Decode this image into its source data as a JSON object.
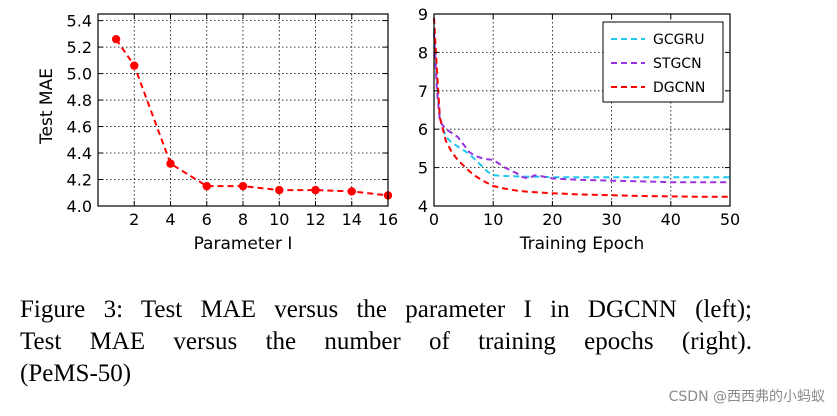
{
  "chart_data": [
    {
      "type": "line",
      "title": "",
      "xlabel": "Parameter I",
      "ylabel": "Test MAE",
      "xlim": [
        0,
        16
      ],
      "ylim": [
        4.0,
        5.45
      ],
      "xticks": [
        2,
        4,
        6,
        8,
        10,
        12,
        14,
        16
      ],
      "yticks": [
        4.0,
        4.2,
        4.4,
        4.6,
        4.8,
        5.0,
        5.2,
        5.4
      ],
      "ytick_labels": [
        "4.0",
        "4.2",
        "4.4",
        "4.6",
        "4.8",
        "5.0",
        "5.2",
        "5.4"
      ],
      "grid": true,
      "series": [
        {
          "name": "DGCNN",
          "color": "#ff0000",
          "style": "dashed-markers",
          "x": [
            1,
            2,
            4,
            6,
            8,
            10,
            12,
            14,
            16
          ],
          "y": [
            5.26,
            5.06,
            4.32,
            4.15,
            4.15,
            4.12,
            4.12,
            4.11,
            4.08
          ]
        }
      ]
    },
    {
      "type": "line",
      "title": "",
      "xlabel": "Training Epoch",
      "ylabel": "",
      "xlim": [
        0,
        50
      ],
      "ylim": [
        4,
        9
      ],
      "xticks": [
        0,
        10,
        20,
        30,
        40,
        50
      ],
      "yticks": [
        4,
        5,
        6,
        7,
        8,
        9
      ],
      "ytick_labels": [
        "4",
        "5",
        "6",
        "7",
        "8",
        "9"
      ],
      "grid": true,
      "legend": "top-right",
      "series": [
        {
          "name": "GCGRU",
          "color": "#1ec8f0",
          "x": [
            0,
            0.5,
            1,
            2,
            3,
            4,
            5,
            6,
            7,
            8,
            9,
            10,
            12,
            14,
            16,
            18,
            20,
            25,
            30,
            35,
            40,
            45,
            50
          ],
          "y": [
            8.6,
            7.2,
            6.3,
            5.8,
            5.65,
            5.55,
            5.45,
            5.35,
            5.2,
            5.05,
            4.9,
            4.8,
            4.78,
            4.77,
            4.76,
            4.76,
            4.75,
            4.75,
            4.75,
            4.75,
            4.75,
            4.75,
            4.75
          ]
        },
        {
          "name": "STGCN",
          "color": "#9933dd",
          "x": [
            0,
            0.5,
            1,
            2,
            3,
            4,
            5,
            6,
            7,
            8,
            9,
            10,
            12,
            14,
            15,
            16,
            17,
            18,
            20,
            22,
            25,
            30,
            35,
            40,
            45,
            50
          ],
          "y": [
            8.5,
            7.0,
            6.2,
            6.0,
            5.9,
            5.8,
            5.6,
            5.4,
            5.3,
            5.25,
            5.22,
            5.2,
            5.0,
            4.85,
            4.75,
            4.72,
            4.8,
            4.78,
            4.72,
            4.7,
            4.68,
            4.66,
            4.64,
            4.62,
            4.62,
            4.62
          ]
        },
        {
          "name": "DGCNN",
          "color": "#ff0000",
          "x": [
            0,
            0.5,
            1,
            2,
            3,
            4,
            5,
            6,
            7,
            8,
            9,
            10,
            12,
            14,
            16,
            18,
            20,
            25,
            30,
            35,
            40,
            45,
            50
          ],
          "y": [
            8.9,
            7.5,
            6.3,
            5.7,
            5.4,
            5.2,
            5.05,
            4.9,
            4.78,
            4.68,
            4.6,
            4.52,
            4.45,
            4.4,
            4.37,
            4.35,
            4.33,
            4.3,
            4.28,
            4.26,
            4.25,
            4.24,
            4.24
          ]
        }
      ]
    }
  ],
  "caption": {
    "line1": "Figure 3: Test MAE versus the parameter I in DGCNN (left);",
    "line2": "Test MAE versus the number of training epochs (right).",
    "line3": "(PeMS-50)"
  },
  "watermark": "CSDN @西西弗的小蚂蚁"
}
